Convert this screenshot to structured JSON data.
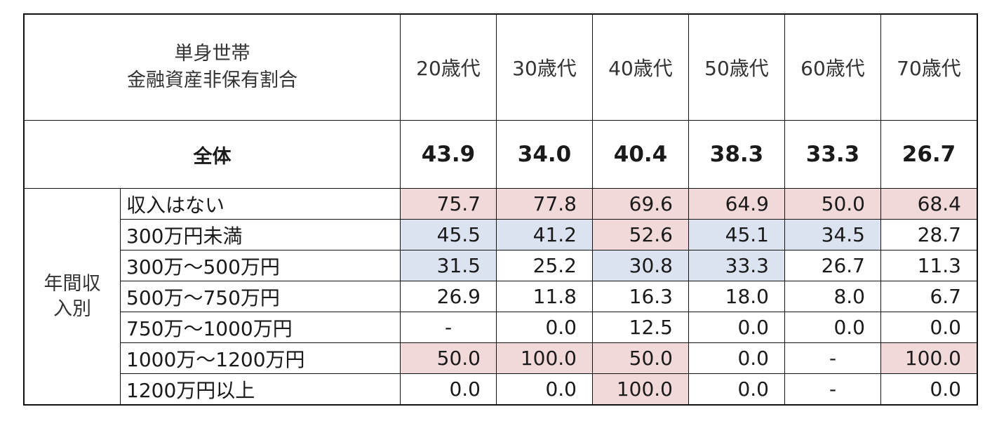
{
  "table": {
    "title_line1": "単身世帯",
    "title_line2": "金融資産非保有割合",
    "columns": [
      "20歳代",
      "30歳代",
      "40歳代",
      "50歳代",
      "60歳代",
      "70歳代"
    ],
    "total": {
      "label": "全体",
      "values": [
        "43.9",
        "34.0",
        "40.4",
        "38.3",
        "33.3",
        "26.7"
      ]
    },
    "group_label_line1": "年間収",
    "group_label_line2": "入別",
    "rows": [
      {
        "label": "収入はない",
        "values": [
          "75.7",
          "77.8",
          "69.6",
          "64.9",
          "50.0",
          "68.4"
        ],
        "highlight": [
          "pink",
          "pink",
          "pink",
          "pink",
          "pink",
          "pink"
        ]
      },
      {
        "label": "300万円未満",
        "values": [
          "45.5",
          "41.2",
          "52.6",
          "45.1",
          "34.5",
          "28.7"
        ],
        "highlight": [
          "blue",
          "blue",
          "pink",
          "blue",
          "blue",
          "none"
        ]
      },
      {
        "label": "300万～500万円",
        "values": [
          "31.5",
          "25.2",
          "30.8",
          "33.3",
          "26.7",
          "11.3"
        ],
        "highlight": [
          "blue",
          "none",
          "blue",
          "blue",
          "none",
          "none"
        ]
      },
      {
        "label": "500万～750万円",
        "values": [
          "26.9",
          "11.8",
          "16.3",
          "18.0",
          "8.0",
          "6.7"
        ],
        "highlight": [
          "none",
          "none",
          "none",
          "none",
          "none",
          "none"
        ]
      },
      {
        "label": "750万～1000万円",
        "values": [
          "-",
          "0.0",
          "12.5",
          "0.0",
          "0.0",
          "0.0"
        ],
        "highlight": [
          "none",
          "none",
          "none",
          "none",
          "none",
          "none"
        ]
      },
      {
        "label": "1000万～1200万円",
        "values": [
          "50.0",
          "100.0",
          "50.0",
          "0.0",
          "-",
          "100.0"
        ],
        "highlight": [
          "pink",
          "pink",
          "pink",
          "none",
          "none",
          "pink"
        ]
      },
      {
        "label": "1200万円以上",
        "values": [
          "0.0",
          "0.0",
          "100.0",
          "0.0",
          "-",
          "0.0"
        ],
        "highlight": [
          "none",
          "none",
          "pink",
          "none",
          "none",
          "none"
        ]
      }
    ],
    "colors": {
      "pink": "#f2d9d9",
      "blue": "#dbe3f0",
      "border": "#111111"
    }
  }
}
